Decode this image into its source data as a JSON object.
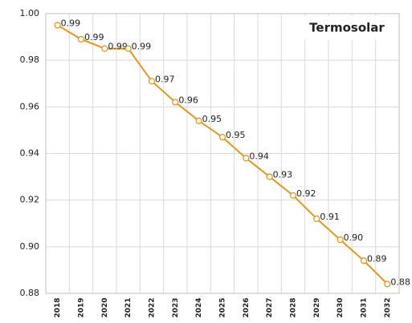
{
  "chart_data": {
    "type": "line",
    "title": "Termosolar",
    "categories": [
      "2018",
      "2019",
      "2020",
      "2021",
      "2022",
      "2023",
      "2024",
      "2025",
      "2026",
      "2027",
      "2028",
      "2029",
      "2030",
      "2031",
      "2032"
    ],
    "series": [
      {
        "color": "#e8961e",
        "values": [
          0.995,
          0.989,
          0.985,
          0.985,
          0.971,
          0.962,
          0.954,
          0.947,
          0.938,
          0.93,
          0.922,
          0.912,
          0.903,
          0.894,
          0.884
        ],
        "value_labels": [
          "0.99",
          "0.99",
          "0.99",
          "0.99",
          "0.97",
          "0.96",
          "0.95",
          "0.95",
          "0.94",
          "0.93",
          "0.92",
          "0.91",
          "0.90",
          "0.89",
          "0.88"
        ]
      }
    ],
    "ylim": [
      0.88,
      1.0
    ],
    "yticks": [
      0.88,
      {
        "value": 0.9,
        "label": "0.90"
      },
      0.92,
      0.94,
      0.96,
      0.98,
      {
        "value": 1.0,
        "label": "1.00"
      }
    ],
    "grid": true
  }
}
